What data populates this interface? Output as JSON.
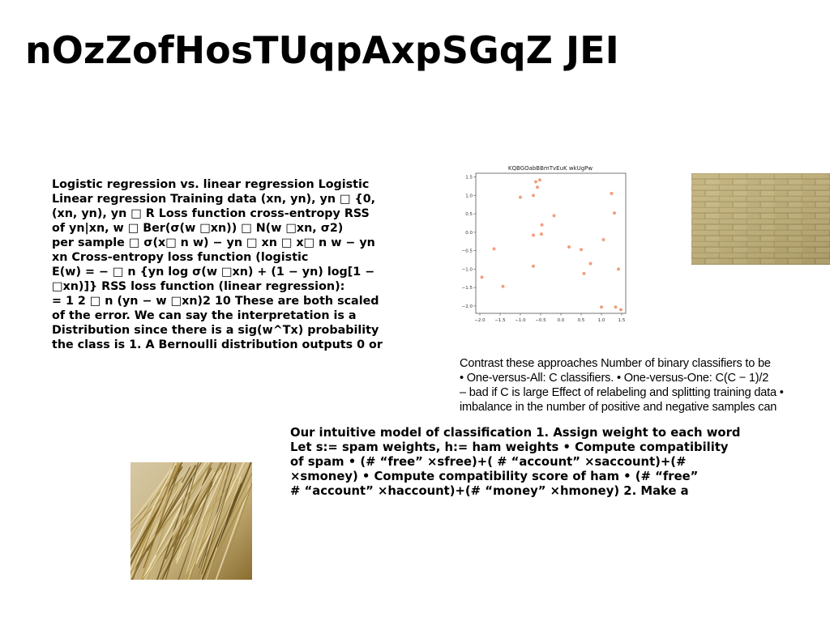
{
  "slide": {
    "title": "nOzZofHosTUqpAxpSGqZ JEI"
  },
  "left_text": {
    "lines": [
      "Logistic regression vs. linear regression Logistic",
      "Linear regression Training data (xn, yn), yn □ {0,",
      "(xn, yn), yn □ R Loss function cross-entropy RSS",
      "of yn|xn, w □ Ber(σ(w □xn)) □ N(w □xn, σ2)",
      "per sample □ σ(x□ n w) − yn □ xn □ x□ n w − yn",
      "xn Cross-entropy loss function (logistic",
      "E(w) = − □ n {yn log σ(w □xn) + (1 − yn) log[1 −",
      "□xn)]} RSS loss function (linear regression):",
      "= 1 2 □ n (yn − w □xn)2 10 These are both scaled",
      "of the error. We can say the interpretation is a",
      "Distribution since there is a sig(w^Tx) probability",
      "the class is 1. A Bernoulli distribution outputs 0 or"
    ]
  },
  "right_text": {
    "lines": [
      "Contrast these approaches Number of binary classifiers to be",
      "• One-versus-All: C classifiers. • One-versus-One: C(C − 1)/2",
      "– bad if C is large Effect of relabeling and splitting training data •",
      "imbalance in the number of positive and negative samples can"
    ]
  },
  "bottom_text": {
    "lines": [
      "Our intuitive model of classification 1. Assign weight to each word",
      "Let s:= spam weights, h:= ham weights • Compute compatibility",
      "of spam • (# “free” ×sfree)+( # “account” ×saccount)+(#",
      "×smoney) • Compute compatibility score of ham • (# “free”",
      "# “account” ×haccount)+(# “money” ×hmoney) 2. Make a"
    ]
  },
  "images": {
    "brick": "brick-wall-photo",
    "straw": "straw-photo"
  },
  "chart_data": {
    "type": "scatter",
    "title": "KQBGOabBBmTvEuK wkUgPw",
    "xlabel": "",
    "ylabel": "",
    "xlim": [
      -2.1,
      1.6
    ],
    "ylim": [
      -2.2,
      1.6
    ],
    "xticks": [
      -2.0,
      -1.5,
      -1.0,
      -0.5,
      0.0,
      0.5,
      1.0,
      1.5
    ],
    "xtick_labels": [
      "−2.0",
      "−1.5",
      "−1.0",
      "−0.5",
      "0.0",
      "0.5",
      "1.0",
      "1.5"
    ],
    "yticks": [
      1.5,
      1.0,
      0.5,
      0.0,
      -0.5,
      -1.0,
      -1.5,
      -2.0
    ],
    "ytick_labels": [
      "1.5",
      "1.0",
      "0.5",
      "0.0",
      "−0.5",
      "−1.0",
      "−1.5",
      "−2.0"
    ],
    "grid": false,
    "point_color": "#f0a080",
    "x": [
      -1.95,
      -1.65,
      -1.43,
      -1.0,
      -0.68,
      -0.62,
      -0.58,
      -0.52,
      -0.68,
      -0.47,
      -0.48,
      -0.68,
      -0.17,
      0.2,
      0.5,
      0.57,
      0.73,
      1.05,
      1.0,
      1.25,
      1.32,
      1.42,
      1.35,
      1.48
    ],
    "y": [
      -1.22,
      -0.45,
      -1.47,
      0.95,
      1.0,
      1.37,
      1.22,
      1.42,
      -0.08,
      0.2,
      -0.05,
      -0.92,
      0.45,
      -0.4,
      -0.47,
      -1.12,
      -0.85,
      -0.2,
      -2.03,
      1.05,
      0.52,
      -1.0,
      -2.03,
      -2.1
    ]
  }
}
